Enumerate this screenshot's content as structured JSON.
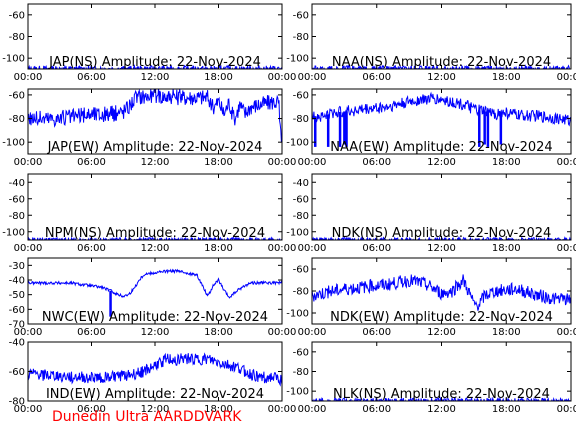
{
  "footer": {
    "credit": "Dunedin Ultra AARDDVARK",
    "credit_color": "#ff0000"
  },
  "trace_color": "#0000ff",
  "chart_data": [
    {
      "type": "line",
      "title": "JAP(NS) Amplitude: 22-Nov-2024",
      "x_ticks": [
        "00:00",
        "06:00",
        "12:00",
        "18:00",
        "00:00"
      ],
      "ylim": [
        -110,
        -50
      ],
      "y_ticks": [
        -100,
        -80,
        -60
      ],
      "series": [
        {
          "x": [
            0,
            1,
            2,
            3,
            4,
            5,
            6,
            7,
            8,
            9,
            10,
            11,
            12,
            13,
            14,
            15,
            16,
            17,
            18,
            19,
            20,
            21,
            22,
            23,
            24
          ],
          "values": [
            -110,
            -110,
            -110,
            -110,
            -110,
            -110,
            -110,
            -110,
            -110,
            -110,
            -110,
            -110,
            -110,
            -110,
            -110,
            -110,
            -110,
            -110,
            -110,
            -110,
            -110,
            -110,
            -110,
            -110,
            -110
          ]
        }
      ],
      "noise_db": 3
    },
    {
      "type": "line",
      "title": "NAA(NS) Amplitude: 22-Nov-2024",
      "x_ticks": [
        "00:00",
        "06:00",
        "12:00",
        "18:00",
        "00:00"
      ],
      "ylim": [
        -110,
        -50
      ],
      "y_ticks": [
        -100,
        -80,
        -60
      ],
      "series": [
        {
          "x": [
            0,
            1,
            2,
            3,
            4,
            5,
            6,
            7,
            8,
            9,
            10,
            11,
            12,
            13,
            14,
            15,
            16,
            17,
            18,
            19,
            20,
            21,
            22,
            23,
            24
          ],
          "values": [
            -110,
            -110,
            -110,
            -110,
            -110,
            -110,
            -110,
            -110,
            -110,
            -110,
            -110,
            -110,
            -110,
            -110,
            -110,
            -110,
            -110,
            -110,
            -110,
            -110,
            -110,
            -110,
            -110,
            -110,
            -110
          ]
        }
      ],
      "noise_db": 3
    },
    {
      "type": "line",
      "title": "JAP(EW) Amplitude: 22-Nov-2024",
      "x_ticks": [
        "00:00",
        "06:00",
        "12:00",
        "18:00",
        "00:00"
      ],
      "ylim": [
        -110,
        -55
      ],
      "y_ticks": [
        -100,
        -80,
        -60
      ],
      "series": [
        {
          "x": [
            0,
            1,
            2,
            3,
            4,
            5,
            6,
            7,
            8,
            9,
            9.5,
            10,
            10.5,
            11,
            12,
            13,
            14,
            15,
            16,
            17,
            17.5,
            18,
            18.5,
            19,
            19.5,
            20,
            20.5,
            21,
            22,
            23,
            23.7,
            23.8,
            24
          ],
          "values": [
            -79,
            -80,
            -80,
            -80,
            -79,
            -78,
            -76,
            -77,
            -76,
            -74,
            -70,
            -64,
            -61,
            -61,
            -61,
            -61,
            -62,
            -62,
            -62,
            -62,
            -72,
            -65,
            -76,
            -66,
            -82,
            -68,
            -76,
            -70,
            -68,
            -66,
            -66,
            -90,
            -96
          ]
        }
      ],
      "noise_db": 7
    },
    {
      "type": "line",
      "title": "NAA(EW) Amplitude: 22-Nov-2024",
      "x_ticks": [
        "00:00",
        "06:00",
        "12:00",
        "18:00",
        "00:00"
      ],
      "ylim": [
        -110,
        -55
      ],
      "y_ticks": [
        -100,
        -80,
        -60
      ],
      "series": [
        {
          "x": [
            0,
            1,
            2,
            3,
            4,
            5,
            6,
            7,
            8,
            9,
            10,
            11,
            12,
            13,
            14,
            15,
            16,
            17,
            18,
            19,
            20,
            21,
            22,
            23,
            24
          ],
          "values": [
            -78,
            -78,
            -75,
            -74,
            -73,
            -72,
            -71,
            -70,
            -68,
            -66,
            -64,
            -63,
            -64,
            -66,
            -68,
            -72,
            -74,
            -76,
            -75,
            -77,
            -78,
            -78,
            -79,
            -80,
            -82
          ]
        }
      ],
      "dropouts": [
        {
          "x": 0.3,
          "to": -104
        },
        {
          "x": 1.5,
          "to": -104
        },
        {
          "x": 2.6,
          "to": -104
        },
        {
          "x": 3.0,
          "to": -102
        },
        {
          "x": 3.2,
          "to": -104
        },
        {
          "x": 15.5,
          "to": -104
        },
        {
          "x": 16.0,
          "to": -102
        },
        {
          "x": 16.3,
          "to": -104
        },
        {
          "x": 17.5,
          "to": -102
        }
      ],
      "noise_db": 5
    },
    {
      "type": "line",
      "title": "NPM(NS) Amplitude: 22-Nov-2024",
      "x_ticks": [
        "00:00",
        "06:00",
        "12:00",
        "18:00",
        "00:00"
      ],
      "ylim": [
        -110,
        -30
      ],
      "y_ticks": [
        -100,
        -80,
        -60,
        -40
      ],
      "series": [
        {
          "x": [
            0,
            1,
            2,
            3,
            4,
            5,
            6,
            7,
            8,
            9,
            10,
            11,
            12,
            13,
            14,
            15,
            16,
            17,
            18,
            19,
            20,
            21,
            22,
            23,
            24
          ],
          "values": [
            -110,
            -110,
            -110,
            -110,
            -110,
            -110,
            -110,
            -110,
            -110,
            -110,
            -110,
            -110,
            -110,
            -110,
            -110,
            -110,
            -110,
            -110,
            -110,
            -110,
            -110,
            -110,
            -110,
            -110,
            -110
          ]
        }
      ],
      "noise_db": 3
    },
    {
      "type": "line",
      "title": "NDK(NS) Amplitude: 22-Nov-2024",
      "x_ticks": [
        "00:00",
        "06:00",
        "12:00",
        "18:00",
        "00:00"
      ],
      "ylim": [
        -110,
        -30
      ],
      "y_ticks": [
        -100,
        -80,
        -60,
        -40
      ],
      "series": [
        {
          "x": [
            0,
            1,
            2,
            3,
            4,
            5,
            6,
            7,
            8,
            9,
            10,
            11,
            12,
            13,
            14,
            15,
            16,
            17,
            18,
            19,
            20,
            21,
            22,
            23,
            24
          ],
          "values": [
            -110,
            -110,
            -110,
            -110,
            -110,
            -110,
            -110,
            -110,
            -110,
            -110,
            -110,
            -110,
            -110,
            -110,
            -110,
            -110,
            -110,
            -110,
            -110,
            -110,
            -110,
            -110,
            -110,
            -110,
            -110
          ]
        }
      ],
      "noise_db": 3
    },
    {
      "type": "line",
      "title": "NWC(EW) Amplitude: 22-Nov-2024",
      "x_ticks": [
        "00:00",
        "06:00",
        "12:00",
        "18:00",
        "00:00"
      ],
      "ylim": [
        -70,
        -25
      ],
      "y_ticks": [
        -70,
        -60,
        -50,
        -40,
        -30
      ],
      "series": [
        {
          "x": [
            0,
            1,
            2,
            3,
            4,
            5,
            6,
            7,
            8,
            8.5,
            9,
            9.5,
            10,
            10.5,
            11,
            12,
            13,
            14,
            15,
            16,
            16.5,
            17,
            17.5,
            18,
            18.5,
            19,
            20,
            21,
            22,
            23,
            24
          ],
          "values": [
            -42,
            -42,
            -42,
            -42,
            -42,
            -43,
            -44,
            -45,
            -48,
            -50,
            -51,
            -50,
            -46,
            -40,
            -36,
            -35,
            -34,
            -34,
            -35,
            -37,
            -44,
            -51,
            -44,
            -40,
            -47,
            -52,
            -46,
            -42,
            -42,
            -42,
            -42
          ]
        }
      ],
      "dropouts": [
        {
          "x": 7.8,
          "to": -65
        }
      ],
      "noise_db": 1
    },
    {
      "type": "line",
      "title": "NDK(EW) Amplitude: 22-Nov-2024",
      "x_ticks": [
        "00:00",
        "06:00",
        "12:00",
        "18:00",
        "00:00"
      ],
      "ylim": [
        -110,
        -50
      ],
      "y_ticks": [
        -100,
        -80,
        -60
      ],
      "series": [
        {
          "x": [
            0,
            1,
            2,
            3,
            4,
            5,
            6,
            7,
            8,
            9,
            10,
            11,
            12,
            13,
            14,
            14.5,
            15,
            15.5,
            16,
            17,
            18,
            19,
            20,
            21,
            22,
            23,
            24
          ],
          "values": [
            -84,
            -82,
            -80,
            -78,
            -77,
            -76,
            -75,
            -74,
            -72,
            -70,
            -72,
            -76,
            -82,
            -80,
            -70,
            -80,
            -92,
            -92,
            -84,
            -80,
            -79,
            -78,
            -81,
            -84,
            -86,
            -88,
            -88
          ]
        }
      ],
      "noise_db": 6
    },
    {
      "type": "line",
      "title": "IND(EW) Amplitude: 22-Nov-2024",
      "x_ticks": [
        "00:00",
        "06:00",
        "12:00",
        "18:00",
        "00:00"
      ],
      "ylim": [
        -80,
        -40
      ],
      "y_ticks": [
        -80,
        -60,
        -40
      ],
      "series": [
        {
          "x": [
            0,
            1,
            2,
            3,
            4,
            5,
            6,
            7,
            8,
            9,
            10,
            11,
            12,
            13,
            14,
            15,
            16,
            17,
            18,
            19,
            20,
            21,
            22,
            23,
            24
          ],
          "values": [
            -62,
            -62,
            -63,
            -63,
            -64,
            -64,
            -64,
            -64,
            -63,
            -63,
            -62,
            -60,
            -56,
            -52,
            -52,
            -51,
            -52,
            -52,
            -54,
            -56,
            -58,
            -62,
            -64,
            -64,
            -66
          ]
        }
      ],
      "noise_db": 4
    },
    {
      "type": "line",
      "title": "NLK(NS) Amplitude: 22-Nov-2024",
      "x_ticks": [
        "00:00",
        "06:00",
        "12:00",
        "18:00",
        "00:00"
      ],
      "ylim": [
        -110,
        -50
      ],
      "y_ticks": [
        -100,
        -80,
        -60
      ],
      "series": [
        {
          "x": [
            0,
            1,
            2,
            3,
            4,
            5,
            6,
            7,
            8,
            9,
            10,
            11,
            12,
            13,
            14,
            15,
            16,
            17,
            18,
            19,
            20,
            21,
            22,
            23,
            24
          ],
          "values": [
            -110,
            -110,
            -110,
            -110,
            -110,
            -110,
            -110,
            -110,
            -110,
            -110,
            -110,
            -110,
            -110,
            -110,
            -110,
            -110,
            -110,
            -110,
            -110,
            -110,
            -110,
            -110,
            -110,
            -110,
            -110
          ]
        }
      ],
      "noise_db": 3
    }
  ]
}
